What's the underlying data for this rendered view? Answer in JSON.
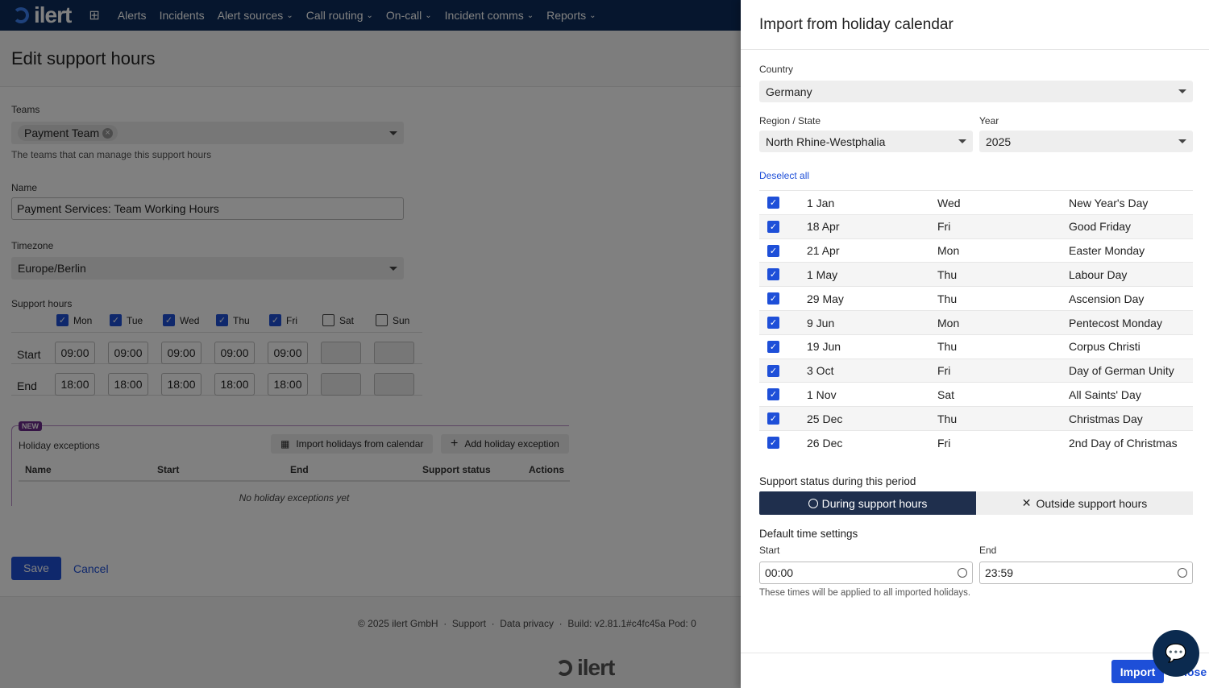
{
  "nav": {
    "logo": "ilert",
    "items": [
      {
        "label": "Alerts",
        "dropdown": false
      },
      {
        "label": "Incidents",
        "dropdown": false
      },
      {
        "label": "Alert sources",
        "dropdown": true
      },
      {
        "label": "Call routing",
        "dropdown": true
      },
      {
        "label": "On-call",
        "dropdown": true
      },
      {
        "label": "Incident comms",
        "dropdown": true
      },
      {
        "label": "Reports",
        "dropdown": true
      }
    ]
  },
  "page": {
    "title": "Edit support hours",
    "teams": {
      "label": "Teams",
      "chip": "Payment Team",
      "help": "The teams that can manage this support hours"
    },
    "name": {
      "label": "Name",
      "value": "Payment Services: Team Working Hours"
    },
    "timezone": {
      "label": "Timezone",
      "value": "Europe/Berlin"
    },
    "support_hours": {
      "label": "Support hours",
      "start_label": "Start",
      "end_label": "End",
      "days": [
        {
          "day": "Mon",
          "checked": true,
          "start": "09:00",
          "end": "18:00"
        },
        {
          "day": "Tue",
          "checked": true,
          "start": "09:00",
          "end": "18:00"
        },
        {
          "day": "Wed",
          "checked": true,
          "start": "09:00",
          "end": "18:00"
        },
        {
          "day": "Thu",
          "checked": true,
          "start": "09:00",
          "end": "18:00"
        },
        {
          "day": "Fri",
          "checked": true,
          "start": "09:00",
          "end": "18:00"
        },
        {
          "day": "Sat",
          "checked": false,
          "start": "",
          "end": ""
        },
        {
          "day": "Sun",
          "checked": false,
          "start": "",
          "end": ""
        }
      ]
    },
    "holidays": {
      "badge": "NEW",
      "title": "Holiday exceptions",
      "import_btn": "Import holidays from calendar",
      "add_btn": "Add holiday exception",
      "columns": [
        "Name",
        "Start",
        "End",
        "Support status",
        "Actions"
      ],
      "empty": "No holiday exceptions yet"
    },
    "save": "Save",
    "cancel": "Cancel",
    "footer": {
      "copyright": "© 2025 ilert GmbH",
      "support": "Support",
      "privacy": "Data privacy",
      "build": "Build: v2.81.1#c4fc45a Pod: 0",
      "logo": "ilert"
    }
  },
  "drawer": {
    "title": "Import from holiday calendar",
    "country": {
      "label": "Country",
      "value": "Germany"
    },
    "region": {
      "label": "Region / State",
      "value": "North Rhine-Westphalia"
    },
    "year": {
      "label": "Year",
      "value": "2025"
    },
    "deselect": "Deselect all",
    "holidays": [
      {
        "date": "1 Jan",
        "weekday": "Wed",
        "name": "New Year's Day",
        "checked": true
      },
      {
        "date": "18 Apr",
        "weekday": "Fri",
        "name": "Good Friday",
        "checked": true
      },
      {
        "date": "21 Apr",
        "weekday": "Mon",
        "name": "Easter Monday",
        "checked": true
      },
      {
        "date": "1 May",
        "weekday": "Thu",
        "name": "Labour Day",
        "checked": true
      },
      {
        "date": "29 May",
        "weekday": "Thu",
        "name": "Ascension Day",
        "checked": true
      },
      {
        "date": "9 Jun",
        "weekday": "Mon",
        "name": "Pentecost Monday",
        "checked": true
      },
      {
        "date": "19 Jun",
        "weekday": "Thu",
        "name": "Corpus Christi",
        "checked": true
      },
      {
        "date": "3 Oct",
        "weekday": "Fri",
        "name": "Day of German Unity",
        "checked": true
      },
      {
        "date": "1 Nov",
        "weekday": "Sat",
        "name": "All Saints' Day",
        "checked": true
      },
      {
        "date": "25 Dec",
        "weekday": "Thu",
        "name": "Christmas Day",
        "checked": true
      },
      {
        "date": "26 Dec",
        "weekday": "Fri",
        "name": "2nd Day of Christmas",
        "checked": true
      }
    ],
    "status": {
      "label": "Support status during this period",
      "during": "During support hours",
      "outside": "Outside support hours",
      "selected": "during"
    },
    "defaults": {
      "label": "Default time settings",
      "start_label": "Start",
      "start": "00:00",
      "end_label": "End",
      "end": "23:59",
      "help": "These times will be applied to all imported holidays."
    },
    "import": "Import",
    "close": "Close"
  },
  "colors": {
    "navbar": "#0b2d5c",
    "primary": "#1e4fd8",
    "selected_toggle": "#1f2f4d",
    "badge": "#6b2a8c"
  }
}
